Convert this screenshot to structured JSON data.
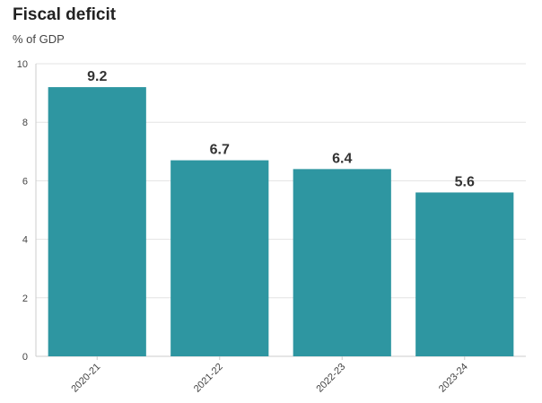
{
  "title": "Fiscal deficit",
  "subtitle": "% of GDP",
  "colors": {
    "bar": "#2e96a1",
    "grid": "#e3e3e3",
    "axis": "#cccccc"
  },
  "chart_data": {
    "type": "bar",
    "title": "Fiscal deficit",
    "subtitle": "% of GDP",
    "categories": [
      "2020-21",
      "2021-22",
      "2022-23",
      "2023-24"
    ],
    "values": [
      9.2,
      6.7,
      6.4,
      5.6
    ],
    "data_labels": [
      "9.2",
      "6.7",
      "6.4",
      "5.6"
    ],
    "ylim": [
      0,
      10
    ],
    "yticks": [
      0,
      2,
      4,
      6,
      8,
      10
    ],
    "grid": true,
    "legend": "none"
  }
}
